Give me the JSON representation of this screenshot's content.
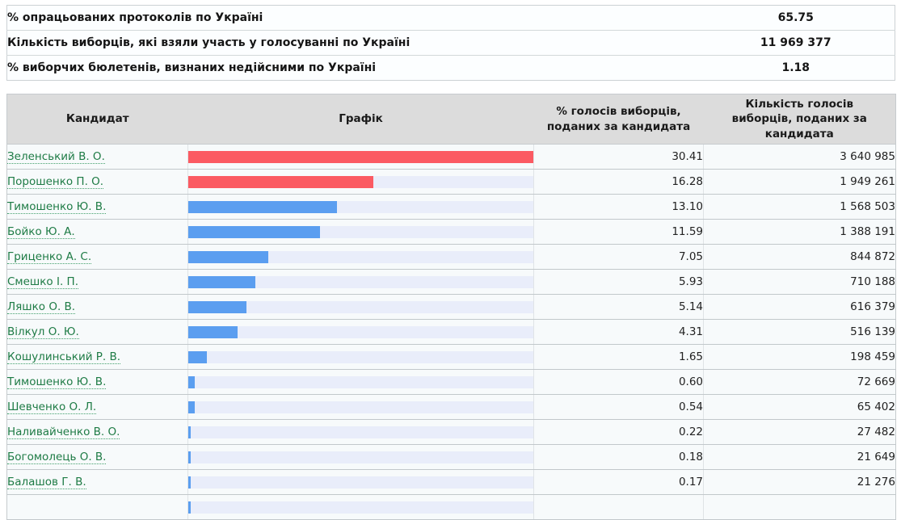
{
  "summary": {
    "rows": [
      {
        "label": "% опрацьованих протоколів по Україні",
        "value": "65.75"
      },
      {
        "label": "Кількість виборців, які взяли участь у голосуванні по Україні",
        "value": "11 969 377"
      },
      {
        "label": "% виборчих бюлетенів, визнаних недійсними по Україні",
        "value": "1.18"
      }
    ]
  },
  "table": {
    "headers": [
      "Кандидат",
      "Графік",
      "% голосів виборців, поданих за кандидата",
      "Кількість голосів виборців, поданих за кандидата"
    ]
  },
  "candidates": [
    {
      "name": "Зеленський В. О.",
      "percent": "30.41",
      "votes": "3 640 985",
      "bar": "red"
    },
    {
      "name": "Порошенко П. О.",
      "percent": "16.28",
      "votes": "1 949 261",
      "bar": "red"
    },
    {
      "name": "Тимошенко Ю. В.",
      "percent": "13.10",
      "votes": "1 568 503",
      "bar": "blue"
    },
    {
      "name": "Бойко Ю. А.",
      "percent": "11.59",
      "votes": "1 388 191",
      "bar": "blue"
    },
    {
      "name": "Гриценко А. С.",
      "percent": "7.05",
      "votes": "844 872",
      "bar": "blue"
    },
    {
      "name": "Смешко І. П.",
      "percent": "5.93",
      "votes": "710 188",
      "bar": "blue"
    },
    {
      "name": "Ляшко О. В.",
      "percent": "5.14",
      "votes": "616 379",
      "bar": "blue"
    },
    {
      "name": "Вілкул О. Ю.",
      "percent": "4.31",
      "votes": "516 139",
      "bar": "blue"
    },
    {
      "name": "Кошулинський Р. В.",
      "percent": "1.65",
      "votes": "198 459",
      "bar": "blue"
    },
    {
      "name": "Тимошенко Ю. В.",
      "percent": "0.60",
      "votes": "72 669",
      "bar": "blue"
    },
    {
      "name": "Шевченко О. Л.",
      "percent": "0.54",
      "votes": "65 402",
      "bar": "blue"
    },
    {
      "name": "Наливайченко В. О.",
      "percent": "0.22",
      "votes": "27 482",
      "bar": "blue"
    },
    {
      "name": "Богомолець О. В.",
      "percent": "0.18",
      "votes": "21 649",
      "bar": "blue"
    },
    {
      "name": "Балашов Г. В.",
      "percent": "0.17",
      "votes": "21 276",
      "bar": "blue"
    }
  ],
  "partial_row": {
    "visible": true,
    "bar": "blue",
    "approx_percent": "0.17"
  },
  "colors": {
    "bar_red": "#fb5a62",
    "bar_blue": "#5b9ef0",
    "bar_track": "#e9edfa",
    "link_green": "#1e7b45",
    "header_bg": "#dcdcdc"
  }
}
